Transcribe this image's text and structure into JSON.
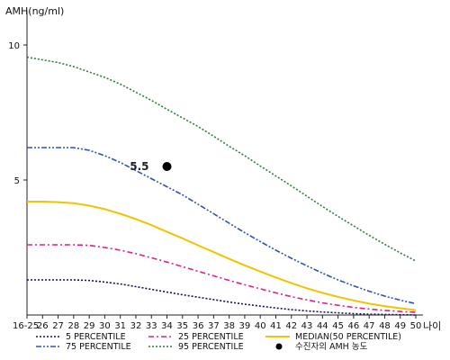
{
  "chart_data": {
    "type": "line",
    "ylabel": "AMH(ng/ml)",
    "xlabel": "나이",
    "categories": [
      "16-25",
      "26",
      "27",
      "28",
      "29",
      "30",
      "31",
      "32",
      "33",
      "34",
      "35",
      "36",
      "37",
      "38",
      "39",
      "40",
      "41",
      "42",
      "43",
      "44",
      "45",
      "46",
      "47",
      "48",
      "49",
      "50"
    ],
    "y_ticks": [
      5,
      10
    ],
    "ylim": [
      0,
      11
    ],
    "grid": false,
    "series": [
      {
        "name": "5 PERCENTILE",
        "color": "#101060",
        "dash": "dotted",
        "values": [
          1.3,
          1.3,
          1.3,
          1.3,
          1.28,
          1.22,
          1.15,
          1.05,
          0.95,
          0.85,
          0.75,
          0.66,
          0.57,
          0.48,
          0.4,
          0.33,
          0.26,
          0.2,
          0.15,
          0.11,
          0.08,
          0.05,
          0.03,
          0.02,
          0.01,
          0.0
        ]
      },
      {
        "name": "25 PERCENTILE",
        "color": "#e0208a",
        "dash": "dash-dot",
        "values": [
          2.6,
          2.6,
          2.6,
          2.6,
          2.58,
          2.5,
          2.4,
          2.27,
          2.12,
          1.96,
          1.79,
          1.62,
          1.45,
          1.28,
          1.12,
          0.97,
          0.82,
          0.68,
          0.56,
          0.45,
          0.36,
          0.28,
          0.22,
          0.17,
          0.13,
          0.1
        ]
      },
      {
        "name": "MEDIAN(50 PERCENTILE)",
        "color": "#f0c400",
        "dash": "solid",
        "values": [
          4.2,
          4.2,
          4.18,
          4.14,
          4.05,
          3.92,
          3.75,
          3.55,
          3.33,
          3.08,
          2.84,
          2.58,
          2.33,
          2.08,
          1.84,
          1.61,
          1.39,
          1.18,
          0.99,
          0.82,
          0.67,
          0.54,
          0.42,
          0.33,
          0.25,
          0.18
        ]
      },
      {
        "name": "75 PERCENTILE",
        "color": "#3050b8",
        "dash": "dash-dot-dot",
        "values": [
          6.2,
          6.2,
          6.2,
          6.2,
          6.1,
          5.9,
          5.65,
          5.35,
          5.05,
          4.75,
          4.45,
          4.1,
          3.75,
          3.4,
          3.05,
          2.72,
          2.4,
          2.1,
          1.82,
          1.55,
          1.3,
          1.08,
          0.88,
          0.7,
          0.55,
          0.42
        ]
      },
      {
        "name": "95 PERCENTILE",
        "color": "#2e7d3a",
        "dash": "dotted",
        "values": [
          9.55,
          9.45,
          9.35,
          9.2,
          9.0,
          8.8,
          8.55,
          8.25,
          7.95,
          7.62,
          7.3,
          6.98,
          6.62,
          6.25,
          5.9,
          5.52,
          5.15,
          4.78,
          4.4,
          4.02,
          3.65,
          3.3,
          2.95,
          2.62,
          2.3,
          2.0
        ]
      }
    ],
    "annotation": {
      "x": "34",
      "y": 5.5,
      "label": "5.5",
      "legend": "수진자의 AMH 농도",
      "color": "#000000"
    },
    "legend_position": "bottom"
  }
}
